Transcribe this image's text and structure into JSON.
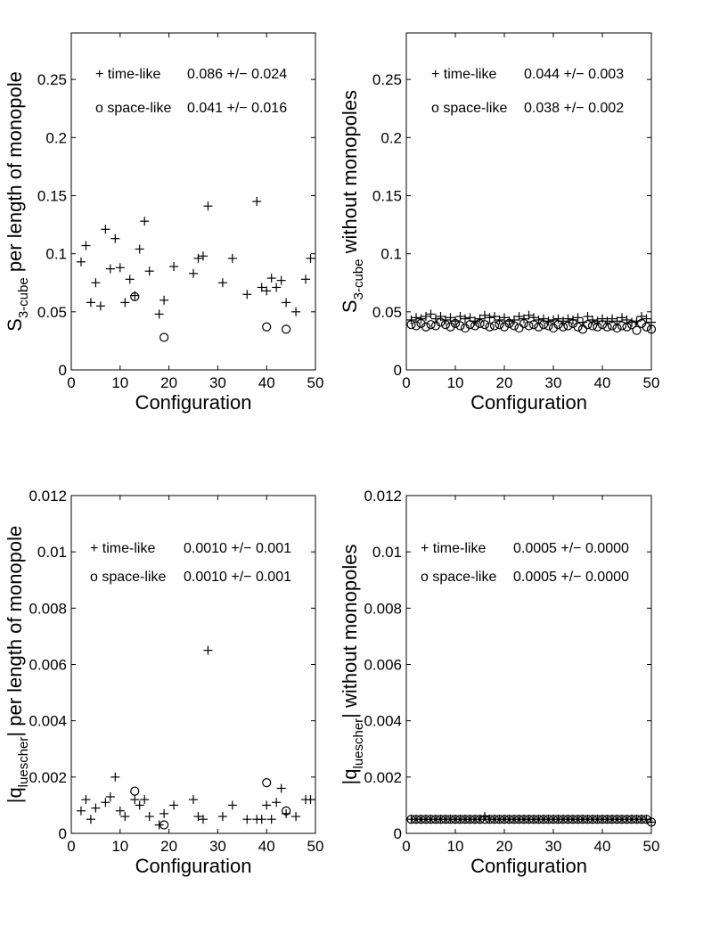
{
  "chart_data": [
    {
      "type": "scatter",
      "xlabel": "Configuration",
      "ylabel_main": "S",
      "ylabel_sub": "3-cube",
      "ylabel_rest": " per length of monopole",
      "xlim": [
        0,
        50
      ],
      "ylim": [
        0,
        0.29
      ],
      "xticks": [
        "0",
        "10",
        "20",
        "30",
        "40",
        "50"
      ],
      "yticks": [
        "0",
        "0.05",
        "0.1",
        "0.15",
        "0.2",
        "0.25"
      ],
      "legend": [
        {
          "marker": "+",
          "label": "time-like",
          "value": "0.086 +/− 0.024"
        },
        {
          "marker": "o",
          "label": "space-like",
          "value": "0.041 +/− 0.016"
        }
      ],
      "series": [
        {
          "name": "time-like",
          "marker": "plus",
          "x": [
            2,
            3,
            4,
            5,
            6,
            7,
            8,
            9,
            10,
            11,
            12,
            13,
            14,
            15,
            16,
            18,
            19,
            21,
            25,
            26,
            27,
            28,
            31,
            33,
            36,
            38,
            39,
            40,
            41,
            42,
            43,
            44,
            46,
            48,
            49
          ],
          "y": [
            0.093,
            0.107,
            0.058,
            0.075,
            0.055,
            0.121,
            0.087,
            0.113,
            0.088,
            0.058,
            0.078,
            0.064,
            0.104,
            0.128,
            0.085,
            0.048,
            0.06,
            0.089,
            0.083,
            0.096,
            0.098,
            0.141,
            0.075,
            0.096,
            0.065,
            0.145,
            0.071,
            0.068,
            0.079,
            0.071,
            0.077,
            0.058,
            0.05,
            0.078,
            0.096
          ]
        },
        {
          "name": "space-like",
          "marker": "circle",
          "x": [
            13,
            19,
            40,
            44
          ],
          "y": [
            0.063,
            0.028,
            0.037,
            0.035
          ]
        }
      ]
    },
    {
      "type": "scatter",
      "xlabel": "Configuration",
      "ylabel_main": "S",
      "ylabel_sub": "3-cube",
      "ylabel_rest": " without monopoles",
      "xlim": [
        0,
        50
      ],
      "ylim": [
        0,
        0.29
      ],
      "xticks": [
        "0",
        "10",
        "20",
        "30",
        "40",
        "50"
      ],
      "yticks": [
        "0",
        "0.05",
        "0.1",
        "0.15",
        "0.2",
        "0.25"
      ],
      "legend": [
        {
          "marker": "+",
          "label": "time-like",
          "value": "0.044 +/− 0.003"
        },
        {
          "marker": "o",
          "label": "space-like",
          "value": "0.038 +/− 0.002"
        }
      ],
      "series": [
        {
          "name": "time-like",
          "marker": "plus",
          "x": [
            1,
            2,
            3,
            4,
            5,
            6,
            7,
            8,
            9,
            10,
            11,
            12,
            13,
            14,
            15,
            16,
            17,
            18,
            19,
            20,
            21,
            22,
            23,
            24,
            25,
            26,
            27,
            28,
            29,
            30,
            31,
            32,
            33,
            34,
            35,
            36,
            37,
            38,
            39,
            40,
            41,
            42,
            43,
            44,
            45,
            46,
            47,
            48,
            49,
            50
          ],
          "y": [
            0.043,
            0.045,
            0.044,
            0.046,
            0.048,
            0.044,
            0.046,
            0.043,
            0.045,
            0.042,
            0.046,
            0.044,
            0.045,
            0.042,
            0.044,
            0.047,
            0.045,
            0.046,
            0.043,
            0.045,
            0.042,
            0.043,
            0.046,
            0.044,
            0.047,
            0.045,
            0.043,
            0.044,
            0.042,
            0.043,
            0.044,
            0.042,
            0.044,
            0.043,
            0.045,
            0.041,
            0.046,
            0.043,
            0.042,
            0.044,
            0.042,
            0.044,
            0.042,
            0.045,
            0.043,
            0.041,
            0.042,
            0.046,
            0.044,
            0.041
          ]
        },
        {
          "name": "space-like",
          "marker": "circle",
          "x": [
            1,
            2,
            3,
            4,
            5,
            6,
            7,
            8,
            9,
            10,
            11,
            12,
            13,
            14,
            15,
            16,
            17,
            18,
            19,
            20,
            21,
            22,
            23,
            24,
            25,
            26,
            27,
            28,
            29,
            30,
            31,
            32,
            33,
            34,
            35,
            36,
            37,
            38,
            39,
            40,
            41,
            42,
            43,
            44,
            45,
            46,
            47,
            48,
            49,
            50
          ],
          "y": [
            0.039,
            0.038,
            0.04,
            0.037,
            0.039,
            0.038,
            0.041,
            0.039,
            0.037,
            0.04,
            0.038,
            0.036,
            0.039,
            0.038,
            0.04,
            0.039,
            0.037,
            0.038,
            0.039,
            0.037,
            0.04,
            0.038,
            0.036,
            0.04,
            0.038,
            0.039,
            0.037,
            0.039,
            0.038,
            0.036,
            0.039,
            0.037,
            0.038,
            0.04,
            0.037,
            0.035,
            0.039,
            0.038,
            0.037,
            0.039,
            0.037,
            0.038,
            0.036,
            0.038,
            0.037,
            0.039,
            0.034,
            0.04,
            0.037,
            0.035
          ]
        }
      ]
    },
    {
      "type": "scatter",
      "xlabel": "Configuration",
      "ylabel_main": "|q",
      "ylabel_sub": "luescher",
      "ylabel_rest": "| per length of monopole",
      "xlim": [
        0,
        50
      ],
      "ylim": [
        0,
        0.012
      ],
      "xticks": [
        "0",
        "10",
        "20",
        "30",
        "40",
        "50"
      ],
      "yticks": [
        "0",
        "0.002",
        "0.004",
        "0.006",
        "0.008",
        "0.01",
        "0.012"
      ],
      "legend": [
        {
          "marker": "+",
          "label": "time-like",
          "value": "0.0010 +/− 0.001"
        },
        {
          "marker": "o",
          "label": "space-like",
          "value": "0.0010 +/− 0.001"
        }
      ],
      "series": [
        {
          "name": "time-like",
          "marker": "plus",
          "x": [
            2,
            3,
            4,
            5,
            7,
            8,
            9,
            10,
            11,
            13,
            14,
            15,
            16,
            18,
            19,
            21,
            25,
            26,
            27,
            28,
            31,
            33,
            36,
            38,
            39,
            40,
            41,
            42,
            43,
            44,
            46,
            48,
            49
          ],
          "y": [
            0.0008,
            0.0012,
            0.0005,
            0.0009,
            0.0011,
            0.0013,
            0.002,
            0.0008,
            0.0006,
            0.0012,
            0.001,
            0.0012,
            0.0006,
            0.0003,
            0.0007,
            0.001,
            0.0012,
            0.0006,
            0.0005,
            0.0065,
            0.0006,
            0.001,
            0.0005,
            0.0005,
            0.0005,
            0.001,
            0.0005,
            0.0011,
            0.0016,
            0.0007,
            0.0006,
            0.0012,
            0.0012
          ]
        },
        {
          "name": "space-like",
          "marker": "circle",
          "x": [
            13,
            19,
            40,
            44
          ],
          "y": [
            0.0015,
            0.0003,
            0.0018,
            0.0008
          ]
        }
      ]
    },
    {
      "type": "scatter",
      "xlabel": "Configuration",
      "ylabel_main": "|q",
      "ylabel_sub": "luescher",
      "ylabel_rest": "| without monopoles",
      "xlim": [
        0,
        50
      ],
      "ylim": [
        0,
        0.012
      ],
      "xticks": [
        "0",
        "10",
        "20",
        "30",
        "40",
        "50"
      ],
      "yticks": [
        "0",
        "0.002",
        "0.004",
        "0.006",
        "0.008",
        "0.01",
        "0.012"
      ],
      "legend": [
        {
          "marker": "+",
          "label": "time-like",
          "value": "0.0005 +/− 0.0000"
        },
        {
          "marker": "o",
          "label": "space-like",
          "value": "0.0005 +/− 0.0000"
        }
      ],
      "series": [
        {
          "name": "time-like",
          "marker": "plus",
          "x": [
            1,
            2,
            3,
            4,
            5,
            6,
            7,
            8,
            9,
            10,
            11,
            12,
            13,
            14,
            15,
            16,
            17,
            18,
            19,
            20,
            21,
            22,
            23,
            24,
            25,
            26,
            27,
            28,
            29,
            30,
            31,
            32,
            33,
            34,
            35,
            36,
            37,
            38,
            39,
            40,
            41,
            42,
            43,
            44,
            45,
            46,
            47,
            48,
            49,
            50
          ],
          "y": [
            0.0005,
            0.0005,
            0.0005,
            0.0005,
            0.0005,
            0.0005,
            0.0005,
            0.0005,
            0.0005,
            0.0005,
            0.0005,
            0.0005,
            0.0005,
            0.0005,
            0.0005,
            0.0006,
            0.0005,
            0.0005,
            0.0005,
            0.0005,
            0.0005,
            0.0005,
            0.0005,
            0.0005,
            0.0005,
            0.0005,
            0.0005,
            0.0005,
            0.0005,
            0.0005,
            0.0005,
            0.0005,
            0.0005,
            0.0005,
            0.0005,
            0.0005,
            0.0005,
            0.0005,
            0.0005,
            0.0005,
            0.0005,
            0.0005,
            0.0005,
            0.0005,
            0.0005,
            0.0005,
            0.0005,
            0.0005,
            0.0005,
            0.0004
          ]
        },
        {
          "name": "space-like",
          "marker": "circle",
          "x": [
            1,
            2,
            3,
            4,
            5,
            6,
            7,
            8,
            9,
            10,
            11,
            12,
            13,
            14,
            15,
            16,
            17,
            18,
            19,
            20,
            21,
            22,
            23,
            24,
            25,
            26,
            27,
            28,
            29,
            30,
            31,
            32,
            33,
            34,
            35,
            36,
            37,
            38,
            39,
            40,
            41,
            42,
            43,
            44,
            45,
            46,
            47,
            48,
            49,
            50
          ],
          "y": [
            0.0005,
            0.0005,
            0.0005,
            0.0005,
            0.0005,
            0.0005,
            0.0005,
            0.0005,
            0.0005,
            0.0005,
            0.0005,
            0.0005,
            0.0005,
            0.0005,
            0.0005,
            0.0005,
            0.0005,
            0.0005,
            0.0005,
            0.0005,
            0.0005,
            0.0005,
            0.0005,
            0.0005,
            0.0005,
            0.0005,
            0.0005,
            0.0005,
            0.0005,
            0.0005,
            0.0005,
            0.0005,
            0.0005,
            0.0005,
            0.0005,
            0.0005,
            0.0005,
            0.0005,
            0.0005,
            0.0005,
            0.0005,
            0.0005,
            0.0005,
            0.0005,
            0.0005,
            0.0005,
            0.0005,
            0.0005,
            0.0005,
            0.0004
          ]
        }
      ]
    }
  ]
}
